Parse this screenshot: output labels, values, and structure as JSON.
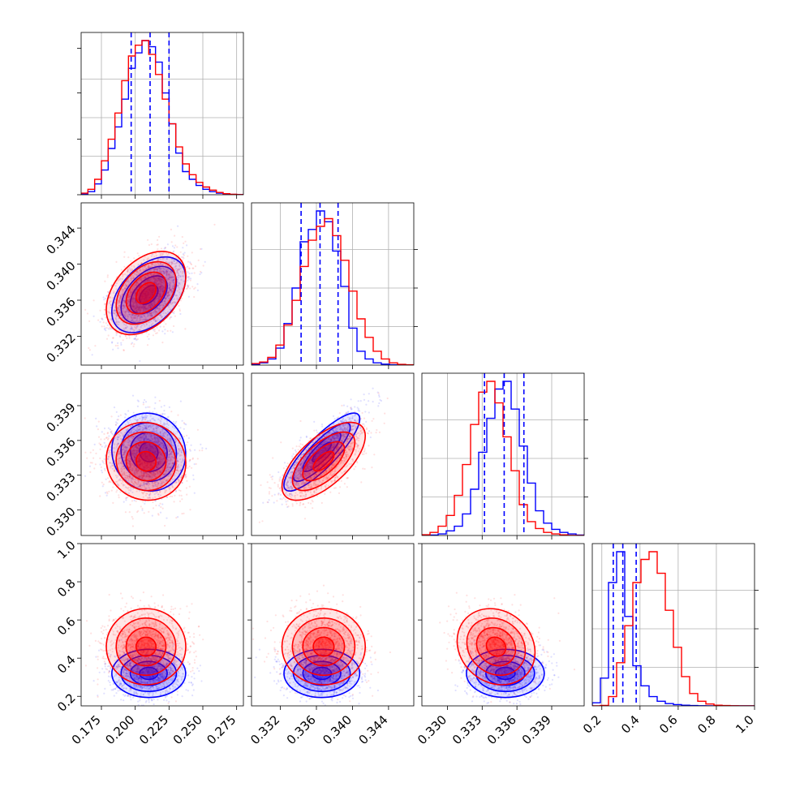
{
  "chart_data": {
    "type": "corner",
    "colors": {
      "blue": "#0000ff",
      "red": "#ff0000",
      "grid": "#b0b0b0"
    },
    "params": [
      {
        "range": [
          0.16,
          0.28
        ],
        "ticks": [
          0.175,
          0.2,
          0.225,
          0.25,
          0.275
        ],
        "tick_labels": [
          "0.175",
          "0.200",
          "0.225",
          "0.250",
          "0.275"
        ]
      },
      {
        "range": [
          0.3288,
          0.3468
        ],
        "ticks": [
          0.332,
          0.336,
          0.34,
          0.344
        ],
        "tick_labels": [
          "0.332",
          "0.336",
          "0.340",
          "0.344"
        ]
      },
      {
        "range": [
          0.3278,
          0.3418
        ],
        "ticks": [
          0.33,
          0.333,
          0.336,
          0.339
        ],
        "tick_labels": [
          "0.330",
          "0.333",
          "0.336",
          "0.339"
        ]
      },
      {
        "range": [
          0.15,
          1.0
        ],
        "ticks": [
          0.2,
          0.4,
          0.6,
          0.8,
          1.0
        ],
        "tick_labels": [
          "0.2",
          "0.4",
          "0.6",
          "0.8",
          "1.0"
        ]
      }
    ],
    "samples": [
      {
        "name": "blue",
        "color": "#0000ff",
        "mean": [
          0.21,
          0.3366,
          0.335,
          0.32
        ],
        "sd": [
          0.013,
          0.002,
          0.0016,
          0.06
        ],
        "quantiles": [
          [
            0.197,
            0.211,
            0.225
          ],
          [
            0.3343,
            0.3364,
            0.3384
          ],
          [
            0.3332,
            0.3349,
            0.3366
          ],
          [
            0.26,
            0.31,
            0.38
          ]
        ]
      },
      {
        "name": "red",
        "color": "#ff0000",
        "mean": [
          0.208,
          0.3368,
          0.3342,
          0.46
        ],
        "sd": [
          0.014,
          0.0022,
          0.0016,
          0.095
        ]
      }
    ],
    "contour_levels_sigma": [
      0.5,
      1.0,
      1.5,
      2.0
    ],
    "histograms": [
      {
        "bin_edges": [
          0.16,
          0.165,
          0.17,
          0.175,
          0.18,
          0.185,
          0.19,
          0.195,
          0.2,
          0.205,
          0.21,
          0.215,
          0.22,
          0.225,
          0.23,
          0.235,
          0.24,
          0.245,
          0.25,
          0.255,
          0.26,
          0.265,
          0.27,
          0.275,
          0.28
        ],
        "blue": [
          0.005,
          0.02,
          0.07,
          0.16,
          0.3,
          0.44,
          0.62,
          0.82,
          0.92,
          1.0,
          0.96,
          0.86,
          0.66,
          0.46,
          0.27,
          0.15,
          0.1,
          0.06,
          0.035,
          0.02,
          0.01,
          0.005,
          0.002,
          0.001
        ],
        "red": [
          0.01,
          0.035,
          0.1,
          0.22,
          0.36,
          0.53,
          0.74,
          0.9,
          0.97,
          1.0,
          0.91,
          0.78,
          0.62,
          0.46,
          0.31,
          0.2,
          0.13,
          0.08,
          0.05,
          0.03,
          0.015,
          0.007,
          0.003,
          0.001
        ]
      },
      {
        "bin_edges": [
          0.3288,
          0.3297,
          0.3306,
          0.3315,
          0.3324,
          0.3333,
          0.3342,
          0.3351,
          0.336,
          0.3369,
          0.3378,
          0.3387,
          0.3396,
          0.3405,
          0.3414,
          0.3423,
          0.3432,
          0.3441,
          0.345,
          0.3459,
          0.3468
        ],
        "blue": [
          0.004,
          0.015,
          0.04,
          0.11,
          0.27,
          0.5,
          0.8,
          0.88,
          1.0,
          0.93,
          0.74,
          0.51,
          0.24,
          0.09,
          0.04,
          0.015,
          0.006,
          0.002,
          0.001,
          0.0
        ],
        "red": [
          0.01,
          0.02,
          0.05,
          0.13,
          0.26,
          0.42,
          0.64,
          0.81,
          0.9,
          0.95,
          0.84,
          0.68,
          0.48,
          0.3,
          0.18,
          0.09,
          0.04,
          0.015,
          0.005,
          0.002
        ]
      },
      {
        "bin_edges": [
          0.3278,
          0.3285,
          0.3292,
          0.3299,
          0.3306,
          0.3313,
          0.332,
          0.3327,
          0.3334,
          0.3341,
          0.3348,
          0.3355,
          0.3362,
          0.3369,
          0.3376,
          0.3383,
          0.339,
          0.3397,
          0.3404,
          0.3411,
          0.3418
        ],
        "blue": [
          0.0,
          0.003,
          0.01,
          0.03,
          0.06,
          0.14,
          0.3,
          0.54,
          0.76,
          0.95,
          1.0,
          0.82,
          0.58,
          0.34,
          0.16,
          0.08,
          0.04,
          0.02,
          0.01,
          0.003
        ],
        "red": [
          0.005,
          0.02,
          0.06,
          0.13,
          0.26,
          0.46,
          0.72,
          0.93,
          1.0,
          0.86,
          0.64,
          0.42,
          0.2,
          0.09,
          0.045,
          0.02,
          0.01,
          0.004,
          0.001,
          0.0
        ]
      },
      {
        "bin_edges": [
          0.15,
          0.1925,
          0.235,
          0.2775,
          0.32,
          0.3625,
          0.405,
          0.4475,
          0.49,
          0.5325,
          0.575,
          0.6175,
          0.66,
          0.7025,
          0.745,
          0.7875,
          0.83,
          0.8725,
          0.915,
          0.9575,
          1.0
        ],
        "blue": [
          0.02,
          0.18,
          0.8,
          1.0,
          0.58,
          0.26,
          0.13,
          0.06,
          0.03,
          0.015,
          0.008,
          0.004,
          0.002,
          0.001,
          0.0,
          0.0,
          0.0,
          0.0,
          0.0,
          0.0
        ],
        "red": [
          0.0,
          0.003,
          0.06,
          0.28,
          0.52,
          0.8,
          0.95,
          1.0,
          0.86,
          0.62,
          0.38,
          0.19,
          0.08,
          0.03,
          0.012,
          0.004,
          0.002,
          0.001,
          0.0,
          0.0
        ]
      }
    ]
  }
}
